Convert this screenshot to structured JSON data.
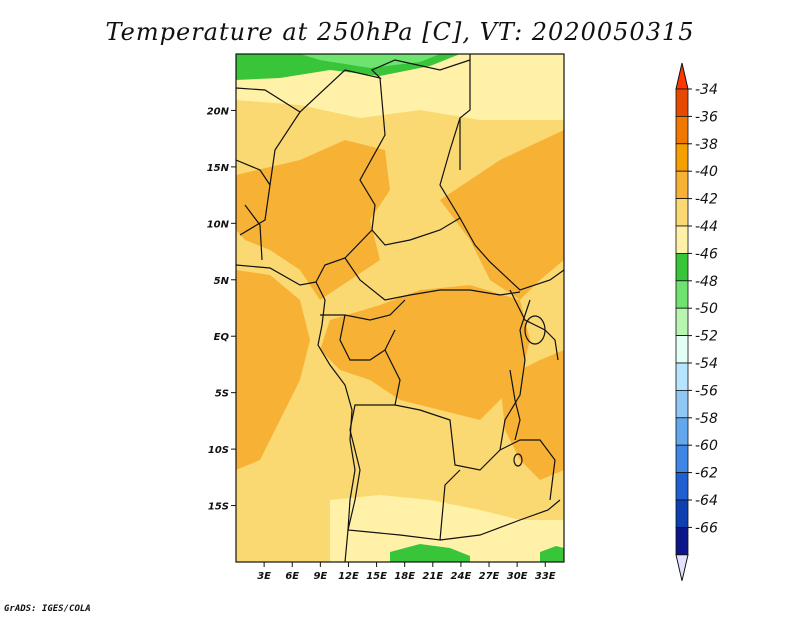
{
  "title": "Temperature at 250hPa [C], VT: 2020050315",
  "credit": "GrADS: IGES/COLA",
  "map": {
    "lon_range": [
      0,
      35
    ],
    "lat_range": [
      -20,
      25
    ],
    "x_ticks": [
      "3E",
      "6E",
      "9E",
      "12E",
      "15E",
      "18E",
      "21E",
      "24E",
      "27E",
      "30E",
      "33E"
    ],
    "x_tick_values": [
      3,
      6,
      9,
      12,
      15,
      18,
      21,
      24,
      27,
      30,
      33
    ],
    "y_ticks": [
      "20N",
      "15N",
      "10N",
      "5N",
      "EQ",
      "5S",
      "10S",
      "15S"
    ],
    "y_tick_values": [
      20,
      15,
      10,
      5,
      0,
      -5,
      -10,
      -15
    ]
  },
  "colorbar": {
    "labels": [
      "-34",
      "-36",
      "-38",
      "-40",
      "-42",
      "-44",
      "-46",
      "-48",
      "-50",
      "-52",
      "-54",
      "-56",
      "-58",
      "-60",
      "-62",
      "-64",
      "-66"
    ],
    "colors": [
      "#e64a00",
      "#f07800",
      "#f5a000",
      "#f7b236",
      "#fbd972",
      "#fff2a8",
      "#39c539",
      "#6fe36f",
      "#b8f5b0",
      "#e3fff5",
      "#b7e4ff",
      "#8fc8f5",
      "#63a8ef",
      "#3d86e6",
      "#1e60d2",
      "#0e3eb0",
      "#0b168a"
    ],
    "top_arrow_color": "#ff3800",
    "bottom_arrow_color": "#e2e2ff"
  }
}
